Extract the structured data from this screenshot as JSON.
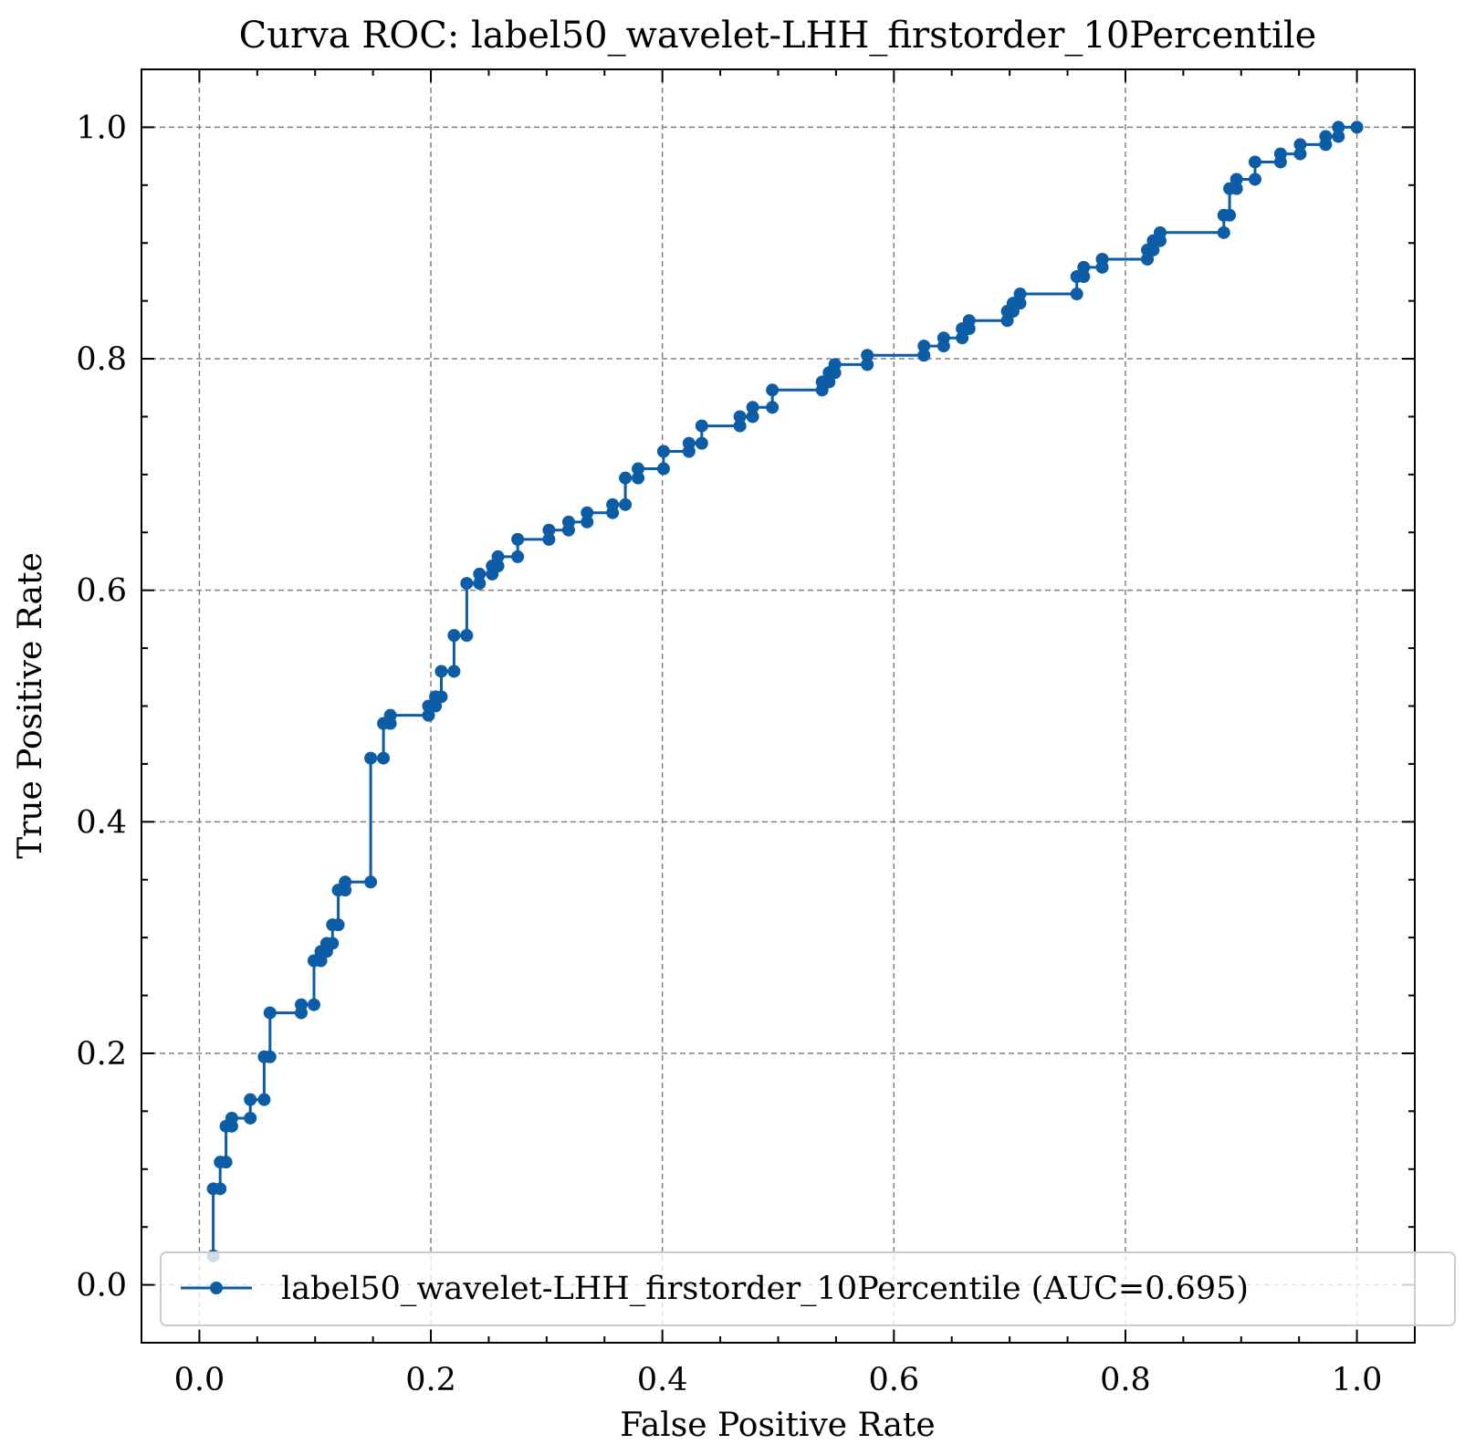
{
  "chart_data": {
    "type": "line",
    "title": "Curva ROC: label50_wavelet-LHH_firstorder_10Percentile",
    "xlabel": "False Positive Rate",
    "ylabel": "True Positive Rate",
    "xlim": [
      -0.05,
      1.05
    ],
    "ylim": [
      -0.05,
      1.05
    ],
    "xticks": [
      "0.0",
      "0.2",
      "0.4",
      "0.6",
      "0.8",
      "1.0"
    ],
    "yticks": [
      "0.0",
      "0.2",
      "0.4",
      "0.6",
      "0.8",
      "1.0"
    ],
    "grid": true,
    "legend_position": "lower-right",
    "series": [
      {
        "name": "label50_wavelet-LHH_firstorder_10Percentile (AUC=0.695)",
        "color": "#0C5DA5",
        "x": [
          0.012,
          0.012,
          0.018,
          0.018,
          0.023,
          0.023,
          0.028,
          0.028,
          0.044,
          0.044,
          0.056,
          0.056,
          0.061,
          0.061,
          0.088,
          0.088,
          0.099,
          0.099,
          0.105,
          0.105,
          0.11,
          0.11,
          0.115,
          0.115,
          0.12,
          0.12,
          0.126,
          0.126,
          0.148,
          0.148,
          0.159,
          0.159,
          0.165,
          0.165,
          0.198,
          0.198,
          0.204,
          0.204,
          0.209,
          0.209,
          0.22,
          0.22,
          0.231,
          0.231,
          0.242,
          0.242,
          0.253,
          0.253,
          0.258,
          0.258,
          0.275,
          0.275,
          0.302,
          0.302,
          0.319,
          0.319,
          0.335,
          0.335,
          0.357,
          0.357,
          0.368,
          0.368,
          0.379,
          0.379,
          0.401,
          0.401,
          0.423,
          0.423,
          0.434,
          0.434,
          0.467,
          0.467,
          0.478,
          0.478,
          0.495,
          0.495,
          0.538,
          0.538,
          0.544,
          0.544,
          0.549,
          0.549,
          0.577,
          0.577,
          0.626,
          0.626,
          0.643,
          0.643,
          0.659,
          0.659,
          0.665,
          0.665,
          0.698,
          0.698,
          0.703,
          0.703,
          0.709,
          0.709,
          0.758,
          0.758,
          0.764,
          0.764,
          0.78,
          0.78,
          0.819,
          0.819,
          0.824,
          0.824,
          0.83,
          0.83,
          0.885,
          0.885,
          0.89,
          0.89,
          0.896,
          0.896,
          0.912,
          0.912,
          0.934,
          0.934,
          0.951,
          0.951,
          0.973,
          0.973,
          0.984,
          0.984,
          1.0
        ],
        "y": [
          0.025,
          0.083,
          0.083,
          0.106,
          0.106,
          0.137,
          0.137,
          0.144,
          0.144,
          0.16,
          0.16,
          0.197,
          0.197,
          0.235,
          0.235,
          0.242,
          0.242,
          0.28,
          0.28,
          0.288,
          0.288,
          0.295,
          0.295,
          0.311,
          0.311,
          0.341,
          0.341,
          0.348,
          0.348,
          0.455,
          0.455,
          0.485,
          0.485,
          0.492,
          0.492,
          0.5,
          0.5,
          0.508,
          0.508,
          0.53,
          0.53,
          0.561,
          0.561,
          0.606,
          0.606,
          0.614,
          0.614,
          0.621,
          0.621,
          0.629,
          0.629,
          0.644,
          0.644,
          0.652,
          0.652,
          0.659,
          0.659,
          0.667,
          0.667,
          0.674,
          0.674,
          0.697,
          0.697,
          0.705,
          0.705,
          0.72,
          0.72,
          0.727,
          0.727,
          0.742,
          0.742,
          0.75,
          0.75,
          0.758,
          0.758,
          0.773,
          0.773,
          0.78,
          0.78,
          0.788,
          0.788,
          0.795,
          0.795,
          0.803,
          0.803,
          0.811,
          0.811,
          0.818,
          0.818,
          0.826,
          0.826,
          0.833,
          0.833,
          0.841,
          0.841,
          0.848,
          0.848,
          0.856,
          0.856,
          0.871,
          0.871,
          0.879,
          0.879,
          0.886,
          0.886,
          0.894,
          0.894,
          0.902,
          0.902,
          0.909,
          0.909,
          0.924,
          0.924,
          0.947,
          0.947,
          0.955,
          0.955,
          0.97,
          0.97,
          0.977,
          0.977,
          0.985,
          0.985,
          0.992,
          0.992,
          1.0,
          1.0
        ]
      }
    ]
  }
}
